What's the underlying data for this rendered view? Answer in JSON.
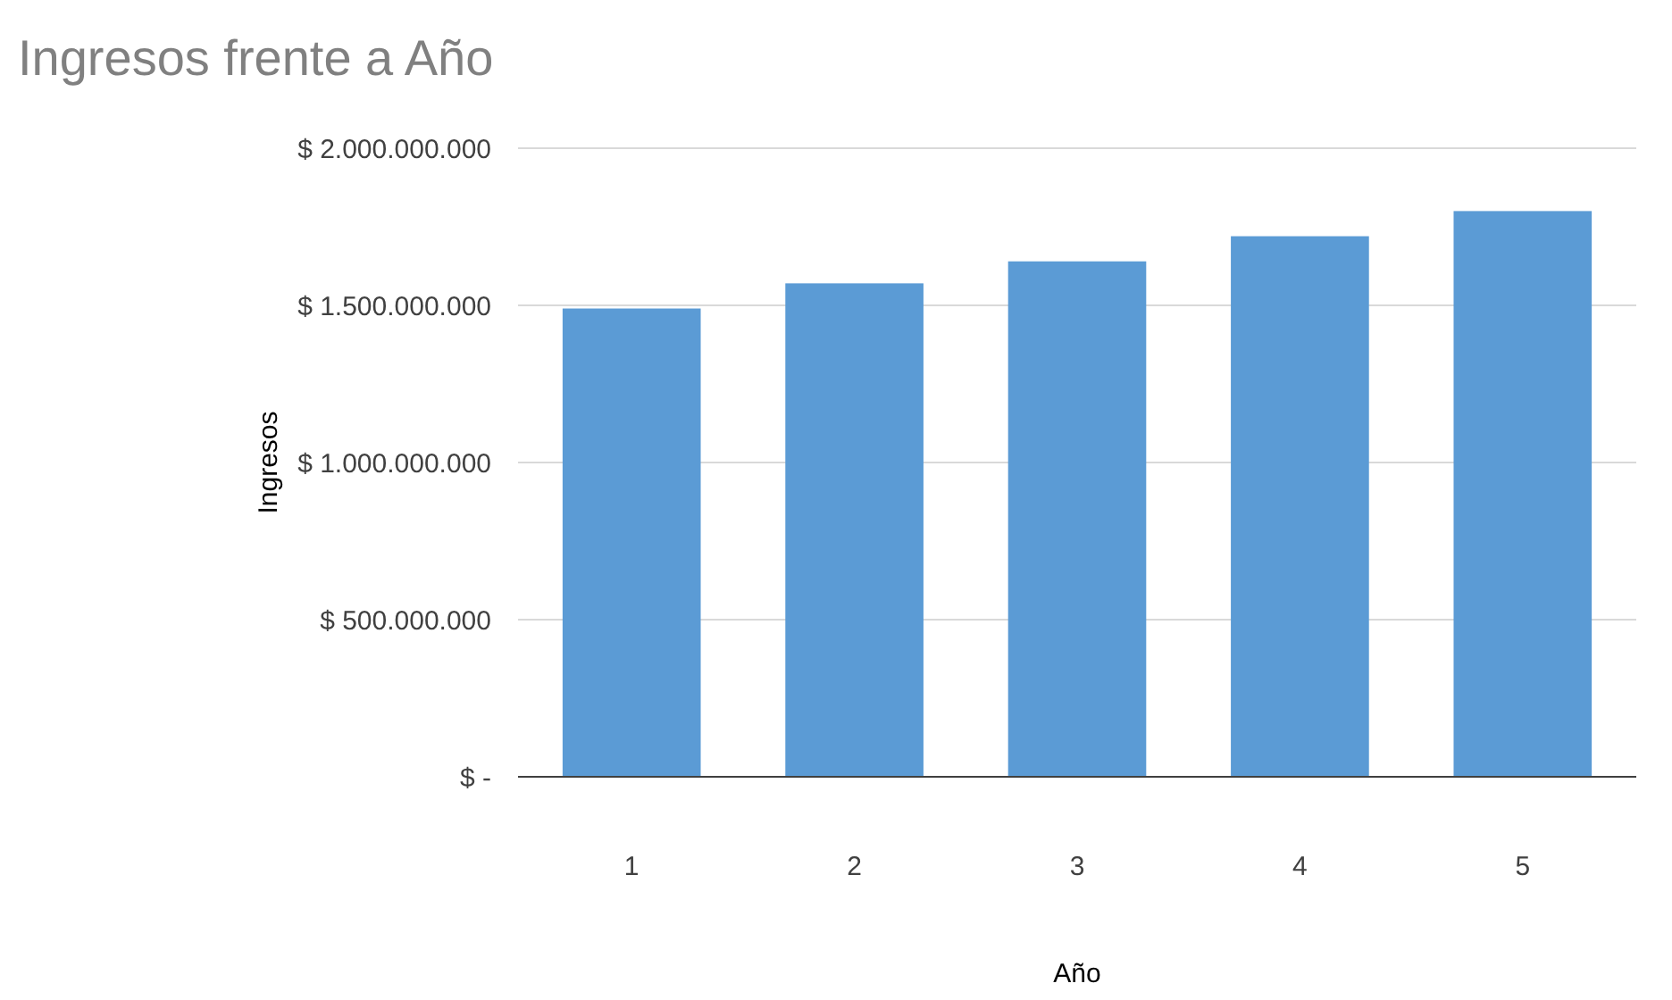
{
  "chart_data": {
    "type": "bar",
    "title": "Ingresos frente a Año",
    "xlabel": "Año",
    "ylabel": "Ingresos",
    "categories": [
      "1",
      "2",
      "3",
      "4",
      "5"
    ],
    "values": [
      1490000000,
      1570000000,
      1640000000,
      1720000000,
      1800000000
    ],
    "color": "#5b9bd5",
    "ylim": [
      0,
      2000000000
    ],
    "yticks": [
      {
        "value": 0,
        "label": "$ -"
      },
      {
        "value": 500000000,
        "label": "$ 500.000.000"
      },
      {
        "value": 1000000000,
        "label": "$ 1.000.000.000"
      },
      {
        "value": 1500000000,
        "label": "$ 1.500.000.000"
      },
      {
        "value": 2000000000,
        "label": "$ 2.000.000.000"
      }
    ],
    "grid": "y"
  }
}
